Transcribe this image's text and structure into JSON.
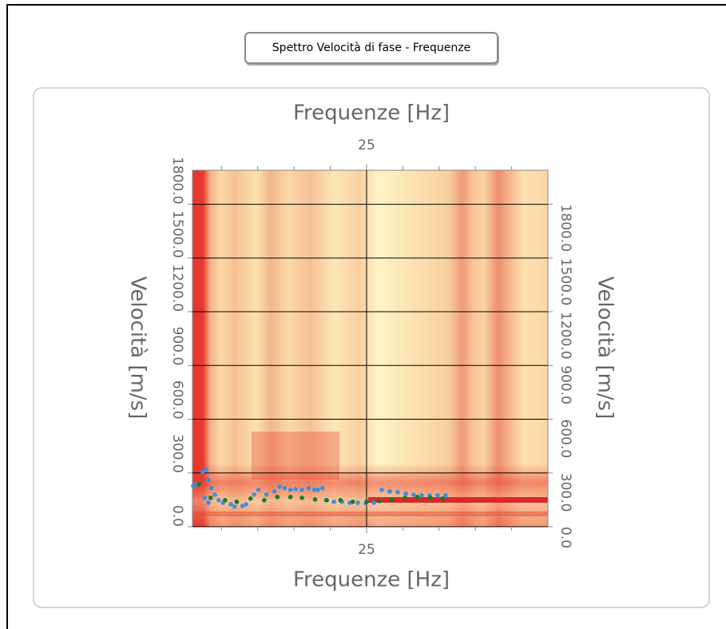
{
  "button": {
    "label": "Spettro Velocità di fase - Frequenze"
  },
  "chart_data": {
    "type": "scatter",
    "x_label": "Frequenze [Hz]",
    "y_label": "Velocità [m/s]",
    "xlim": [
      1,
      50
    ],
    "ylim": [
      0,
      1990
    ],
    "xticks": [
      25
    ],
    "xminorticks": [
      5,
      10,
      15,
      20,
      30,
      35,
      40,
      45
    ],
    "yticks": [
      {
        "value": 0,
        "label": "0.0"
      },
      {
        "value": 300,
        "label": "300.0"
      },
      {
        "value": 600,
        "label": "600.0"
      },
      {
        "value": 900,
        "label": "900.0"
      },
      {
        "value": 1200,
        "label": "1200.0"
      },
      {
        "value": 1500,
        "label": "1500.0"
      },
      {
        "value": 1800,
        "label": "1800.0"
      }
    ],
    "grid": true,
    "series": [
      {
        "color": "#3d8fe0",
        "x": [
          1.1,
          1.6,
          2.4,
          2.9,
          3.2,
          3.6,
          4.1,
          2.7,
          3.2,
          4.6,
          5.2,
          6.3,
          6.8,
          7.9,
          8.4,
          9.5,
          10.1,
          11.2,
          12.3,
          13.0,
          13.7,
          14.5,
          15.2,
          16.1,
          17.0,
          17.8,
          18.3,
          18.9,
          19.4,
          20.5,
          21.6,
          22.7,
          23.8,
          24.9,
          26.0,
          27.1,
          28.2,
          29.3,
          30.4,
          31.5,
          32.6,
          33.7,
          34.8,
          35.9
        ],
        "values": [
          228,
          237,
          305,
          318,
          260,
          215,
          179,
          161,
          134,
          148,
          134,
          125,
          112,
          116,
          125,
          179,
          206,
          179,
          197,
          224,
          215,
          206,
          210,
          206,
          215,
          206,
          206,
          215,
          148,
          139,
          139,
          134,
          134,
          130,
          134,
          206,
          197,
          193,
          184,
          179,
          175,
          175,
          175,
          175
        ]
      },
      {
        "color": "#1a7a2a",
        "x": [
          1.9,
          3.5,
          5.5,
          7.1,
          9.0,
          10.9,
          12.7,
          14.5,
          16.1,
          17.9,
          19.5,
          21.4,
          23.1,
          25.0,
          26.8,
          28.5,
          30.3,
          32.0,
          33.8,
          35.5
        ],
        "values": [
          237,
          161,
          148,
          139,
          157,
          148,
          166,
          166,
          161,
          152,
          148,
          148,
          139,
          139,
          143,
          152,
          161,
          166,
          161,
          157
        ]
      }
    ]
  }
}
